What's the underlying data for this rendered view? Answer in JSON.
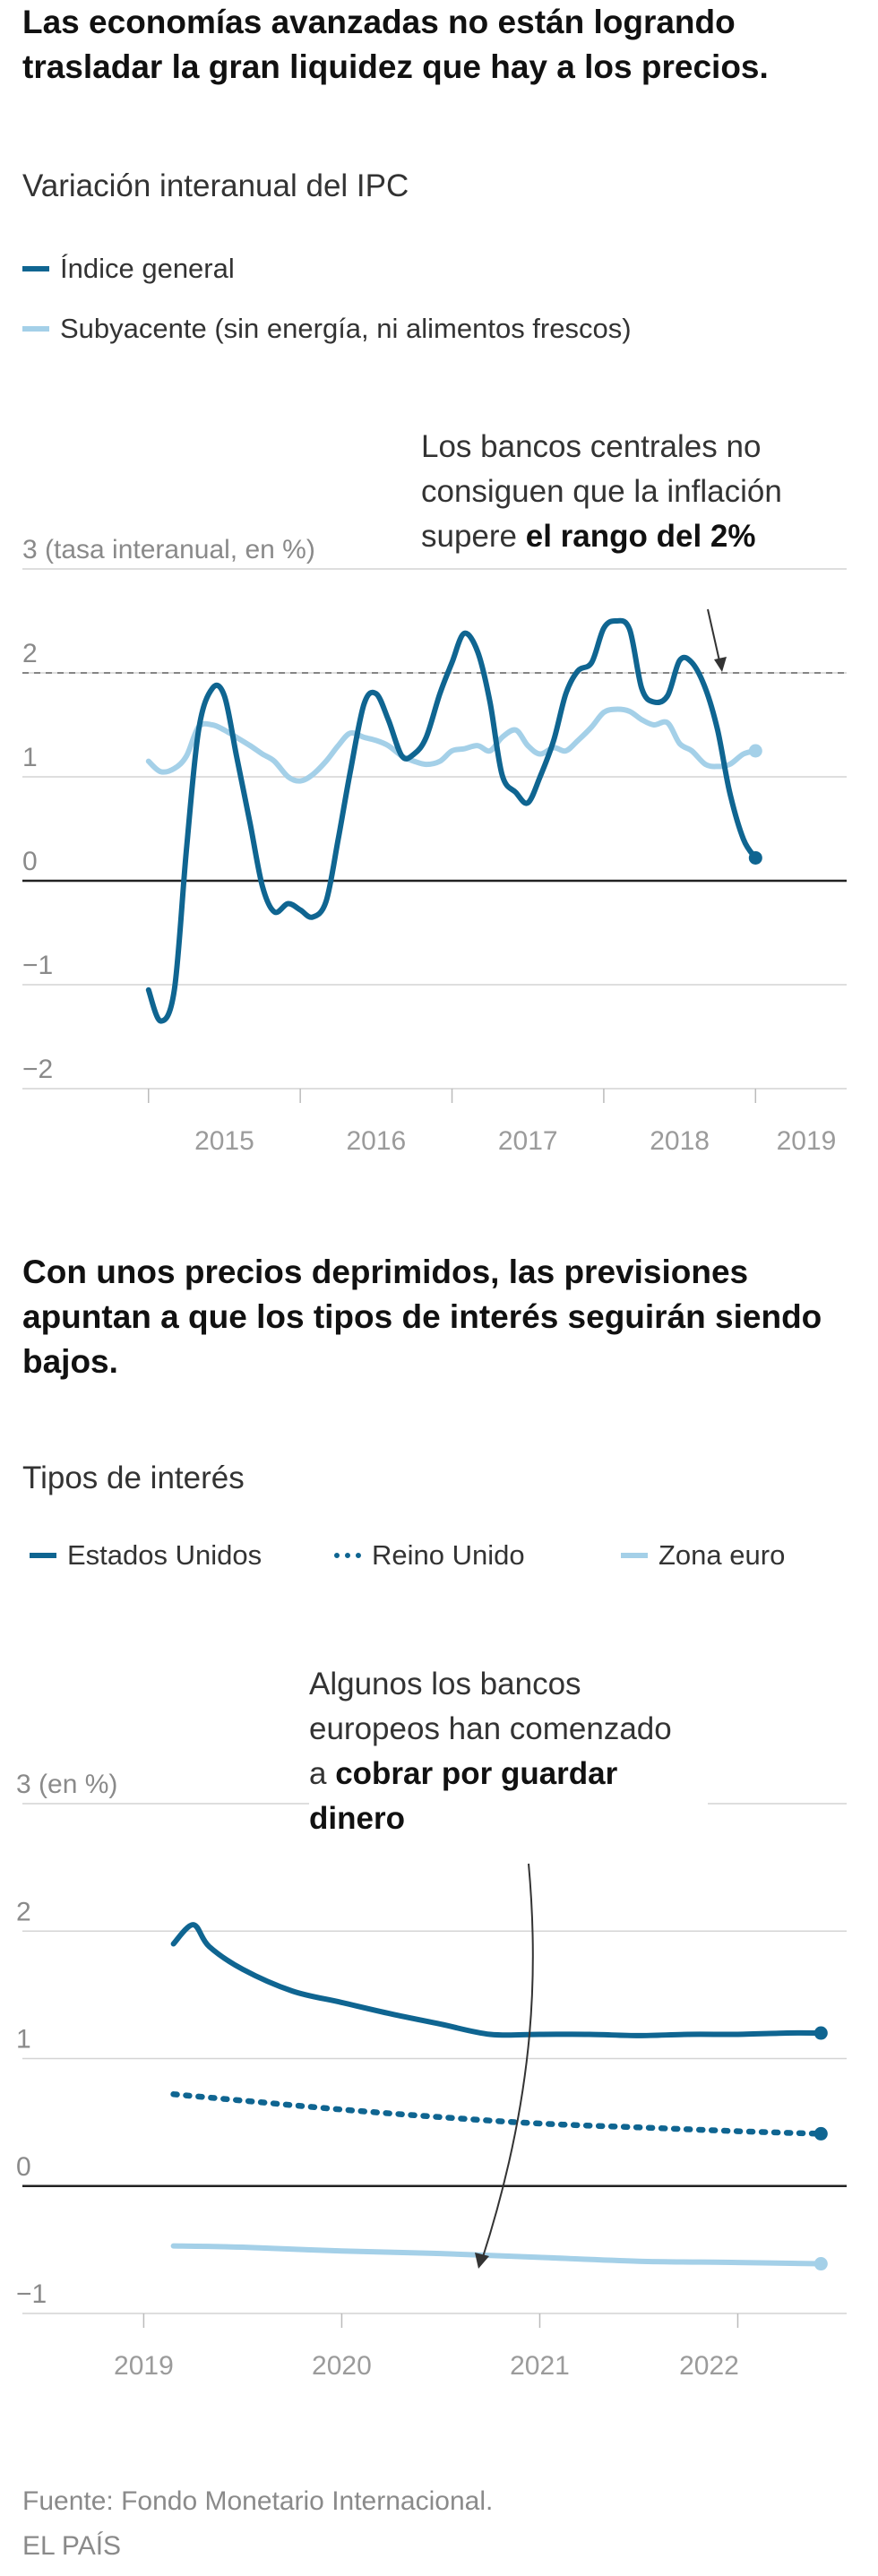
{
  "chart1": {
    "headline": "Las economías avanzadas no están logrando trasladar la gran liquidez que hay a los precios.",
    "subtitle": "Variación interanual del IPC",
    "legend": [
      {
        "label": "Índice general",
        "color": "#0f6591",
        "style": "solid"
      },
      {
        "label": "Subyacente (sin energía, ni alimentos frescos)",
        "color": "#a4d0e8",
        "style": "solid"
      }
    ],
    "annotation": {
      "line1": "Los bancos centrales no",
      "line2": "consiguen que la inflación",
      "line3_prefix": "supere ",
      "line3_bold": "el rango del 2%"
    }
  },
  "chart2": {
    "headline": "Con unos precios deprimidos, las previsiones apuntan a que los tipos de interés seguirán siendo bajos.",
    "subtitle": "Tipos de interés",
    "legend": [
      {
        "label": "Estados Unidos",
        "color": "#0f6591",
        "style": "solid"
      },
      {
        "label": "Reino Unido",
        "color": "#0f6591",
        "style": "dotted"
      },
      {
        "label": "Zona euro",
        "color": "#a4d0e8",
        "style": "solid"
      }
    ],
    "annotation": {
      "line1": "Algunos los bancos",
      "line2": "europeos han comenzado",
      "line3_prefix": "a ",
      "line3_bold": "cobrar por guardar",
      "line4_bold": "dinero"
    }
  },
  "footer": {
    "source": "Fuente: Fondo Monetario Internacional.",
    "brand": "EL PAÍS"
  },
  "chart_data": [
    {
      "type": "line",
      "title": "Variación interanual del IPC",
      "ylabel": "3 (tasa interanual, en %)",
      "ylim": [
        -2,
        3
      ],
      "yticks": [
        -2,
        -1,
        0,
        1,
        2,
        3
      ],
      "ytick_labels": [
        "−2",
        "−1",
        "0",
        "1",
        "2",
        "3 (tasa interanual, en %)"
      ],
      "xlim": [
        2014.6,
        2019.5
      ],
      "xticks": [
        2015,
        2016,
        2017,
        2018,
        2019
      ],
      "xtick_labels": [
        "2015",
        "2016",
        "2017",
        "2018",
        "2019"
      ],
      "reference_line": {
        "y": 2,
        "style": "dashed"
      },
      "grid": true,
      "series": [
        {
          "name": "Índice general",
          "color": "#0f6591",
          "x": [
            2015.0,
            2015.08,
            2015.17,
            2015.25,
            2015.33,
            2015.42,
            2015.5,
            2015.58,
            2015.67,
            2015.75,
            2015.83,
            2015.92,
            2016.0,
            2016.08,
            2016.17,
            2016.25,
            2016.33,
            2016.42,
            2016.5,
            2016.58,
            2016.67,
            2016.75,
            2016.83,
            2016.92,
            2017.0,
            2017.08,
            2017.17,
            2017.25,
            2017.33,
            2017.42,
            2017.5,
            2017.58,
            2017.67,
            2017.75,
            2017.83,
            2017.92,
            2018.0,
            2018.08,
            2018.17,
            2018.25,
            2018.33,
            2018.42,
            2018.5,
            2018.58,
            2018.67,
            2018.75,
            2018.83,
            2018.92,
            2019.0
          ],
          "y": [
            -1.05,
            -1.35,
            -1.05,
            0.3,
            1.45,
            1.85,
            1.78,
            1.2,
            0.55,
            -0.05,
            -0.3,
            -0.22,
            -0.28,
            -0.35,
            -0.2,
            0.4,
            1.05,
            1.7,
            1.8,
            1.55,
            1.2,
            1.22,
            1.38,
            1.8,
            2.1,
            2.38,
            2.2,
            1.72,
            1.02,
            0.85,
            0.75,
            1.0,
            1.35,
            1.8,
            2.02,
            2.1,
            2.43,
            2.5,
            2.42,
            1.85,
            1.72,
            1.78,
            2.12,
            2.1,
            1.85,
            1.45,
            0.85,
            0.4,
            0.22
          ]
        },
        {
          "name": "Subyacente (sin energía, ni alimentos frescos)",
          "color": "#a4d0e8",
          "x": [
            2015.0,
            2015.08,
            2015.17,
            2015.25,
            2015.33,
            2015.42,
            2015.5,
            2015.58,
            2015.67,
            2015.75,
            2015.83,
            2015.92,
            2016.0,
            2016.08,
            2016.17,
            2016.25,
            2016.33,
            2016.42,
            2016.5,
            2016.58,
            2016.67,
            2016.75,
            2016.83,
            2016.92,
            2017.0,
            2017.08,
            2017.17,
            2017.25,
            2017.33,
            2017.42,
            2017.5,
            2017.58,
            2017.67,
            2017.75,
            2017.83,
            2017.92,
            2018.0,
            2018.08,
            2018.17,
            2018.25,
            2018.33,
            2018.42,
            2018.5,
            2018.58,
            2018.67,
            2018.75,
            2018.83,
            2018.92,
            2019.0
          ],
          "y": [
            1.15,
            1.05,
            1.08,
            1.2,
            1.48,
            1.5,
            1.45,
            1.38,
            1.3,
            1.22,
            1.15,
            1.0,
            0.96,
            1.02,
            1.15,
            1.3,
            1.42,
            1.38,
            1.35,
            1.3,
            1.2,
            1.15,
            1.12,
            1.15,
            1.25,
            1.27,
            1.3,
            1.25,
            1.38,
            1.45,
            1.3,
            1.22,
            1.28,
            1.25,
            1.35,
            1.48,
            1.62,
            1.65,
            1.63,
            1.55,
            1.5,
            1.52,
            1.32,
            1.25,
            1.12,
            1.1,
            1.12,
            1.22,
            1.25
          ]
        }
      ]
    },
    {
      "type": "line",
      "title": "Tipos de interés",
      "ylabel": "3 (en %)",
      "ylim": [
        -1,
        3
      ],
      "yticks": [
        -1,
        0,
        1,
        2,
        3
      ],
      "ytick_labels": [
        "−1",
        "0",
        "1",
        "2",
        "3 (en %)"
      ],
      "xlim": [
        2018.6,
        2022.5
      ],
      "xticks": [
        2019,
        2020,
        2021,
        2022
      ],
      "xtick_labels": [
        "2019",
        "2020",
        "2021",
        "2022"
      ],
      "grid": true,
      "series": [
        {
          "name": "Estados Unidos",
          "color": "#0f6591",
          "style": "solid",
          "x": [
            2019.15,
            2019.25,
            2019.33,
            2019.5,
            2019.75,
            2020.0,
            2020.25,
            2020.5,
            2020.75,
            2021.0,
            2021.25,
            2021.5,
            2021.75,
            2022.0,
            2022.25,
            2022.42
          ],
          "y": [
            1.9,
            2.05,
            1.88,
            1.7,
            1.53,
            1.44,
            1.35,
            1.27,
            1.19,
            1.19,
            1.19,
            1.18,
            1.19,
            1.19,
            1.2,
            1.2
          ]
        },
        {
          "name": "Reino Unido",
          "color": "#0f6591",
          "style": "dotted",
          "x": [
            2019.15,
            2019.5,
            2020.0,
            2020.5,
            2021.0,
            2021.5,
            2022.0,
            2022.42
          ],
          "y": [
            0.72,
            0.67,
            0.6,
            0.54,
            0.49,
            0.46,
            0.43,
            0.41
          ]
        },
        {
          "name": "Zona euro",
          "color": "#a4d0e8",
          "style": "solid",
          "x": [
            2019.15,
            2019.5,
            2020.0,
            2020.5,
            2021.0,
            2021.5,
            2022.0,
            2022.42
          ],
          "y": [
            -0.47,
            -0.48,
            -0.51,
            -0.53,
            -0.56,
            -0.59,
            -0.6,
            -0.61
          ]
        }
      ]
    }
  ]
}
